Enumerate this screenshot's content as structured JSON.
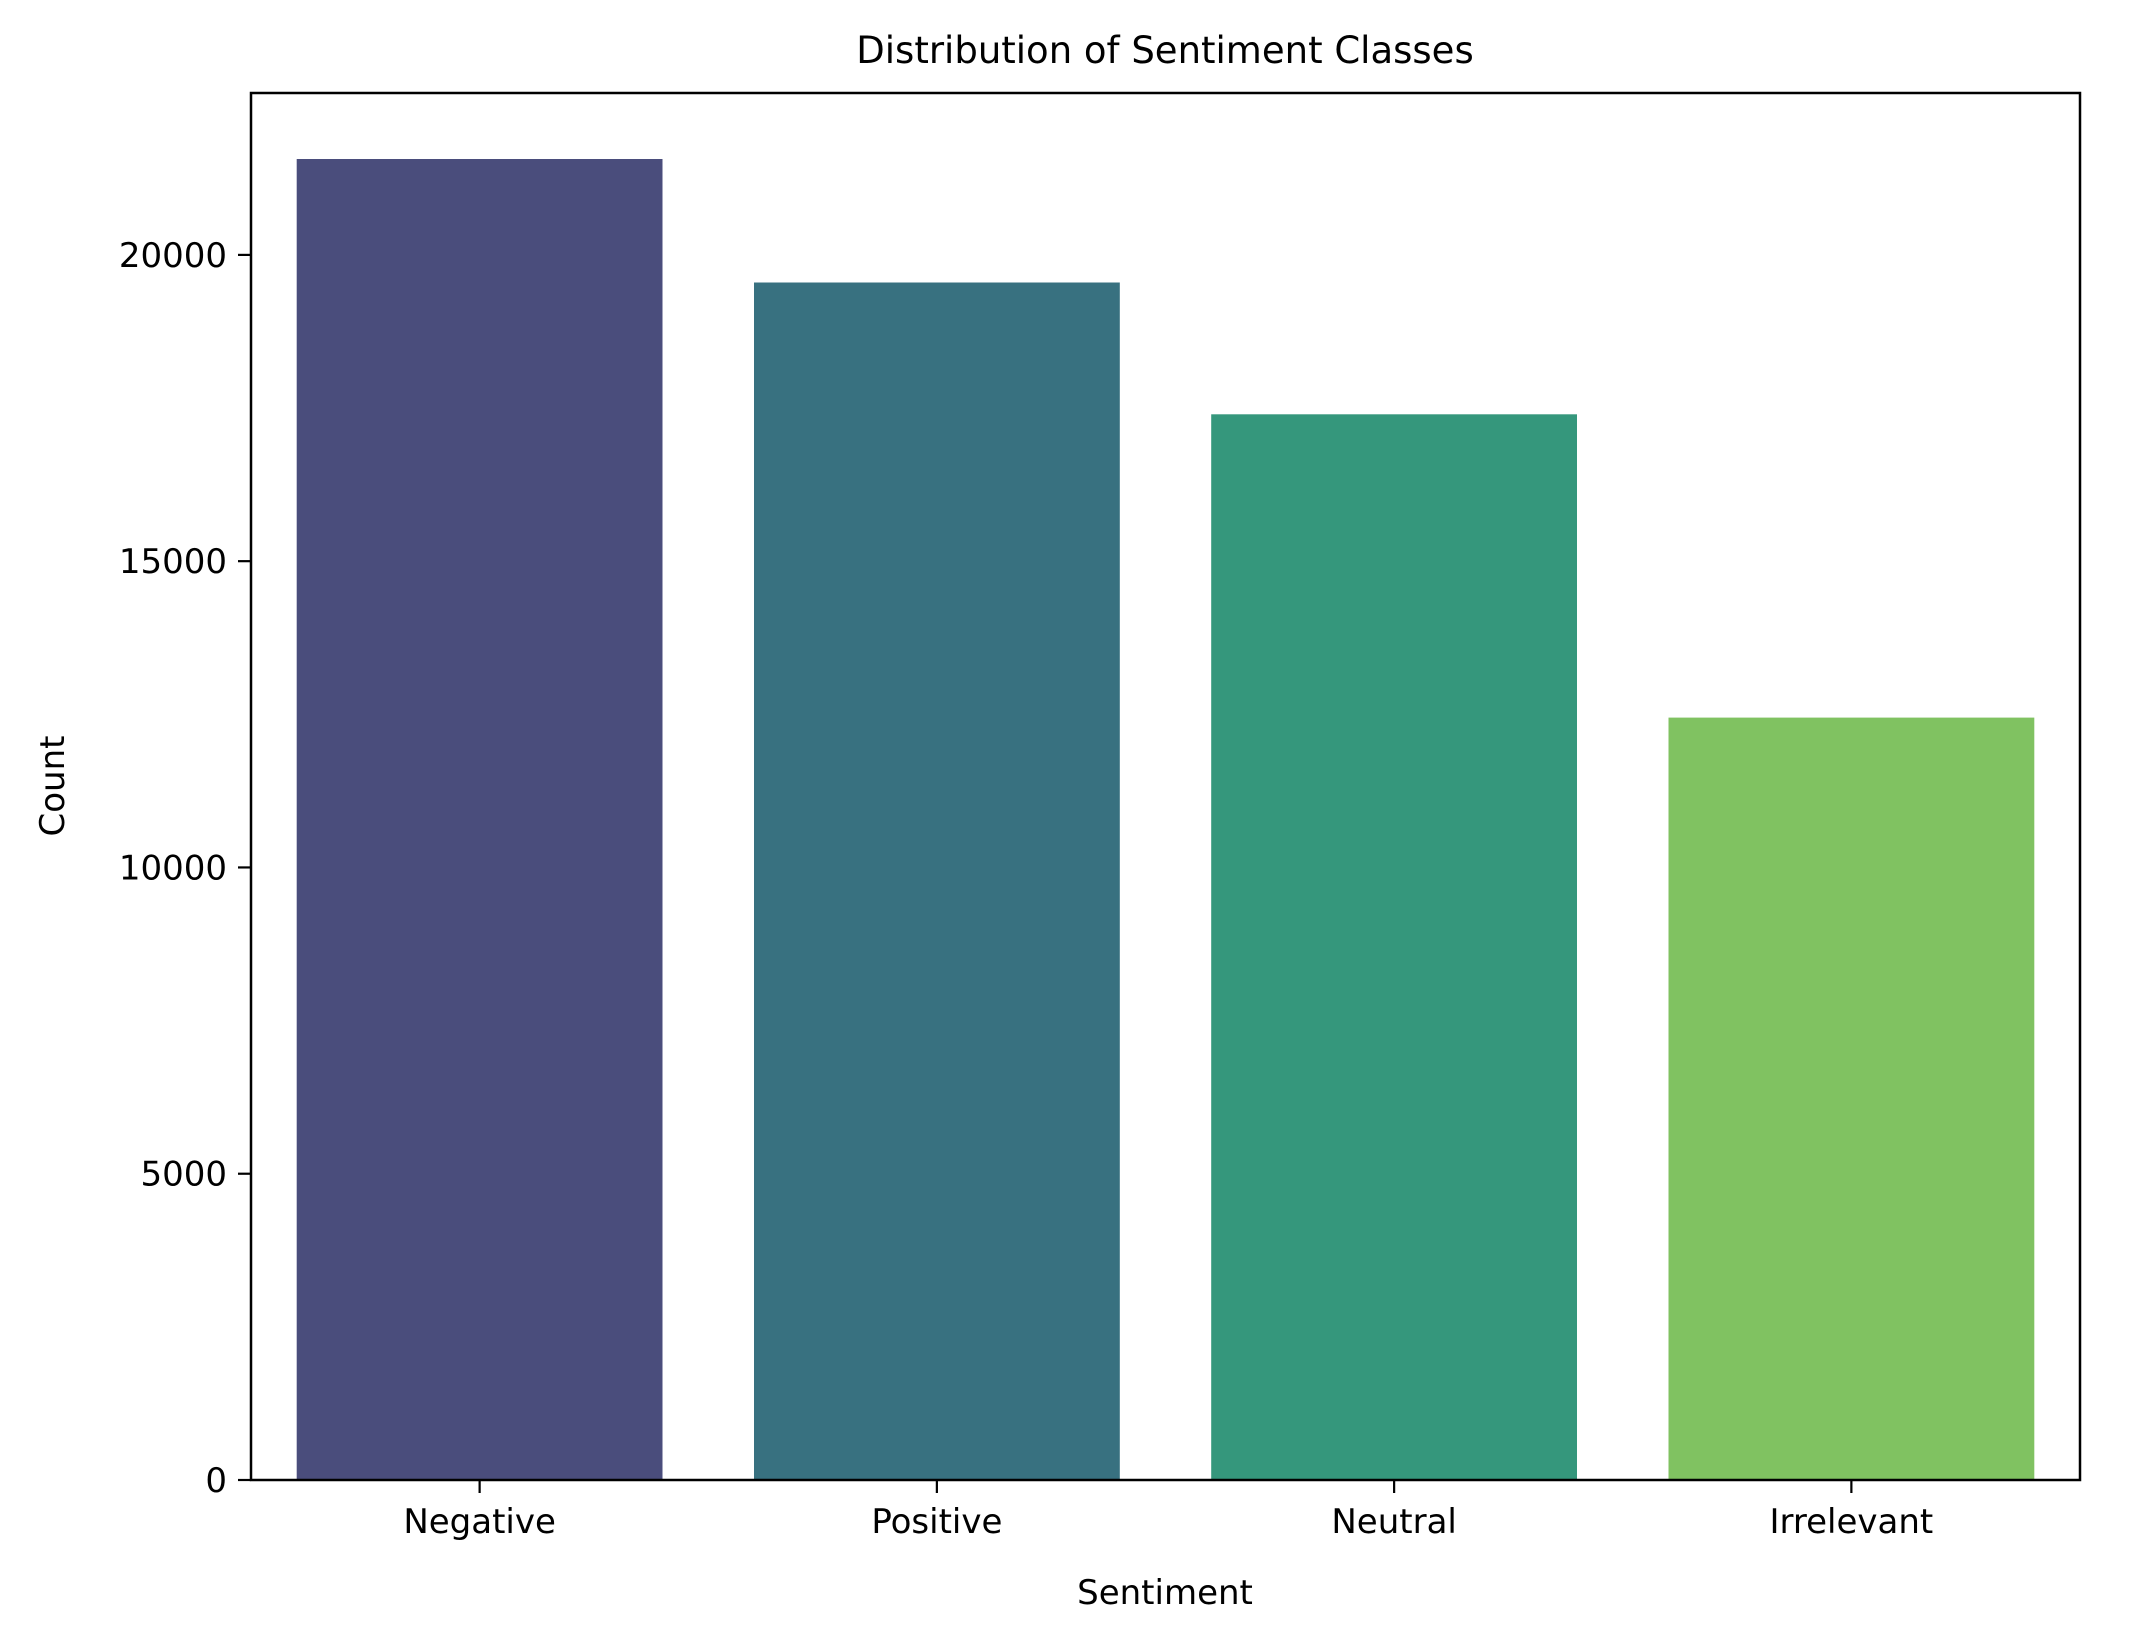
{
  "chart_data": {
    "type": "bar",
    "title": "Distribution of Sentiment Classes",
    "xlabel": "Sentiment",
    "ylabel": "Count",
    "categories": [
      "Negative",
      "Positive",
      "Neutral",
      "Irrelevant"
    ],
    "values": [
      21565,
      19549,
      17398,
      12447
    ],
    "colors": [
      "#4a4d7c",
      "#387180",
      "#35977c",
      "#80c261"
    ],
    "ylim": [
      0,
      22643
    ],
    "yticks": [
      0,
      5000,
      10000,
      15000,
      20000
    ],
    "grid": false,
    "legend": "none"
  }
}
